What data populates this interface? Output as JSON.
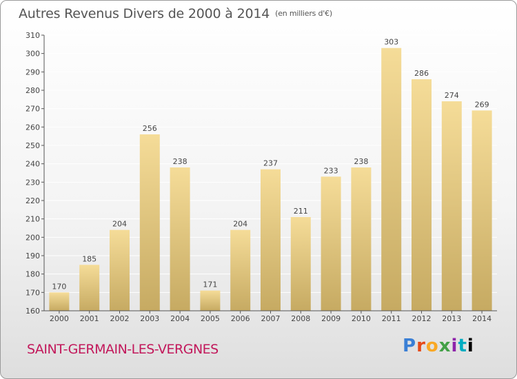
{
  "header": {
    "title": "Autres Revenus Divers de 2000 à 2014",
    "unit": "(en milliers d'€)"
  },
  "footer": {
    "commune": "SAINT-GERMAIN-LES-VERGNES",
    "logo": "Proxiti"
  },
  "colors": {
    "bar_light": "#f5dc98",
    "bar_dark": "#c6aa62",
    "axis": "#555555",
    "grid": "#ffffff",
    "commune": "#c2185b"
  },
  "chart_data": {
    "type": "bar",
    "title": "Autres Revenus Divers de 2000 à 2014",
    "subtitle": "(en milliers d'€)",
    "xlabel": "",
    "ylabel": "",
    "categories": [
      "2000",
      "2001",
      "2002",
      "2003",
      "2004",
      "2005",
      "2006",
      "2007",
      "2008",
      "2009",
      "2010",
      "2011",
      "2012",
      "2013",
      "2014"
    ],
    "values": [
      170,
      185,
      204,
      256,
      238,
      171,
      204,
      237,
      211,
      233,
      238,
      303,
      286,
      274,
      269
    ],
    "ylim": [
      160,
      310
    ],
    "yticks": [
      160,
      170,
      180,
      190,
      200,
      210,
      220,
      230,
      240,
      250,
      260,
      270,
      280,
      290,
      300,
      310
    ],
    "grid": true,
    "data_labels": true
  }
}
